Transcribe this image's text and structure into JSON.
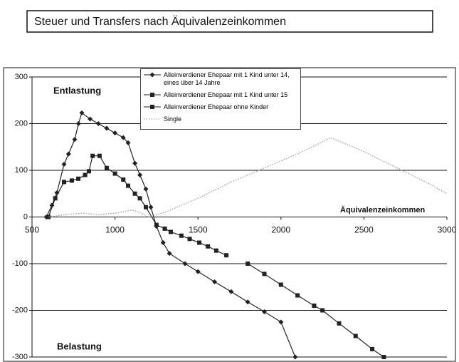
{
  "chart_data": {
    "type": "line",
    "title": "Steuer und Transfers nach Äquivalenzeinkommen",
    "annotations": [
      "Entlastung",
      "Belastung",
      "Äquivalenzeinkommen"
    ],
    "xlim": [
      500,
      3000
    ],
    "xticks": [
      500,
      1000,
      1500,
      2000,
      2500,
      3000
    ],
    "ylim": [
      -300,
      300
    ],
    "yticks": [
      -300,
      -200,
      -100,
      0,
      100,
      200,
      300
    ],
    "grid": true,
    "legend": "top",
    "series": [
      {
        "name": "Alleinverdiener Ehepaar mit 1 Kind unter 14, eines über 14 Jahre",
        "color": "#222222",
        "marker": "diamond",
        "x": [
          586,
          620,
          650,
          693,
          720,
          757,
          780,
          800,
          850,
          900,
          950,
          1000,
          1050,
          1079,
          1120,
          1150,
          1186,
          1216,
          1250,
          1290,
          1328,
          1422,
          1500,
          1600,
          1700,
          1800,
          1900,
          2000,
          2086
        ],
        "values": [
          0,
          25,
          52,
          113,
          135,
          166,
          200,
          223,
          210,
          200,
          190,
          180,
          170,
          159,
          115,
          90,
          60,
          21,
          -20,
          -55,
          -78,
          -100,
          -117,
          -139,
          -160,
          -182,
          -203,
          -225,
          -300
        ]
      },
      {
        "name": "Alleinverdiener Ehepaar mit 1 Kind unter 15",
        "color": "#222222",
        "marker": "square",
        "x": [
          599,
          640,
          693,
          740,
          779,
          820,
          843,
          865,
          907,
          950,
          1000,
          1050,
          1079,
          1120,
          1150,
          1186,
          1250,
          1300,
          1336,
          1400,
          1450,
          1508,
          1560,
          1610,
          1671
        ],
        "values": [
          0,
          40,
          75,
          78,
          82,
          90,
          98,
          131,
          131,
          105,
          93,
          80,
          67,
          50,
          40,
          21,
          -17,
          -25,
          -32,
          -40,
          -47,
          -55,
          -63,
          -72,
          -82
        ]
      },
      {
        "name": "Alleinverdiener Ehepaar ohne Kinder",
        "color": "#222222",
        "marker": "square",
        "x": [
          1800,
          1900,
          2000,
          2100,
          2200,
          2250,
          2350,
          2450,
          2550,
          2620
        ],
        "values": [
          -100,
          -122,
          -145,
          -168,
          -190,
          -200,
          -228,
          -255,
          -283,
          -300
        ]
      },
      {
        "name": "Single",
        "color": "#999999",
        "marker": "none",
        "x": [
          600,
          700,
          800,
          900,
          1000,
          1100,
          1150,
          1200,
          1300,
          1500,
          1700,
          1900,
          2100,
          2300,
          2500,
          2700,
          2900,
          3000
        ],
        "values": [
          0,
          5,
          8,
          5,
          8,
          15,
          10,
          0,
          10,
          40,
          75,
          105,
          135,
          170,
          140,
          105,
          70,
          50
        ]
      }
    ]
  }
}
